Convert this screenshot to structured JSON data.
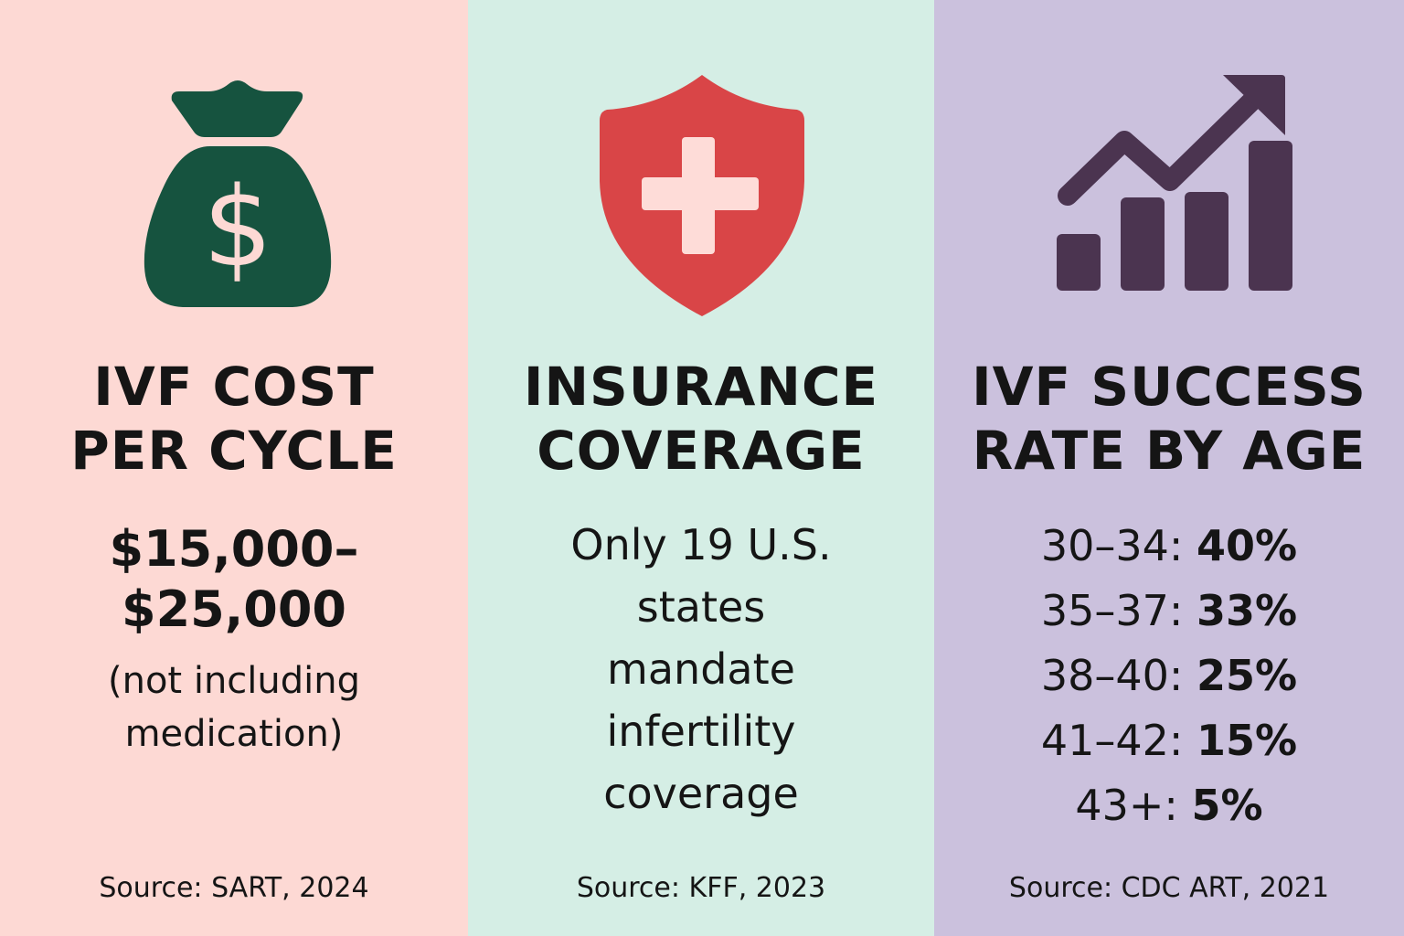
{
  "colors": {
    "cost_bg": "#fdd9d4",
    "insurance_bg": "#d5eee5",
    "success_bg": "#cbc1dd",
    "money_bag": "#16533f",
    "shield": "#d94547",
    "shield_cross": "#fedcd8",
    "chart_icon": "#4b3450",
    "text": "#151515"
  },
  "cost": {
    "icon": "money-bag-dollar-icon",
    "title_lines": [
      "IVF COST",
      "PER CYCLE"
    ],
    "amount_lines": [
      "$15,000–",
      "$25,000"
    ],
    "note_lines": [
      "(not including",
      "medication)"
    ],
    "source": "Source: SART, 2024"
  },
  "insurance": {
    "icon": "shield-cross-icon",
    "title_lines": [
      "INSURANCE",
      "COVERAGE"
    ],
    "body_lines": [
      "Only 19 U.S.",
      "states",
      "mandate",
      "infertility",
      "coverage"
    ],
    "source": "Source: KFF, 2023"
  },
  "success": {
    "icon": "rising-bar-chart-icon",
    "title_lines": [
      "IVF SUCCESS",
      "RATE BY AGE"
    ],
    "rates": [
      {
        "age": "30–34:",
        "rate": "40%"
      },
      {
        "age": "35–37:",
        "rate": "33%"
      },
      {
        "age": "38–40:",
        "rate": "25%"
      },
      {
        "age": "41–42:",
        "rate": "15%"
      },
      {
        "age": "43+:",
        "rate": "5%"
      }
    ],
    "source": "Source: CDC ART, 2021"
  }
}
